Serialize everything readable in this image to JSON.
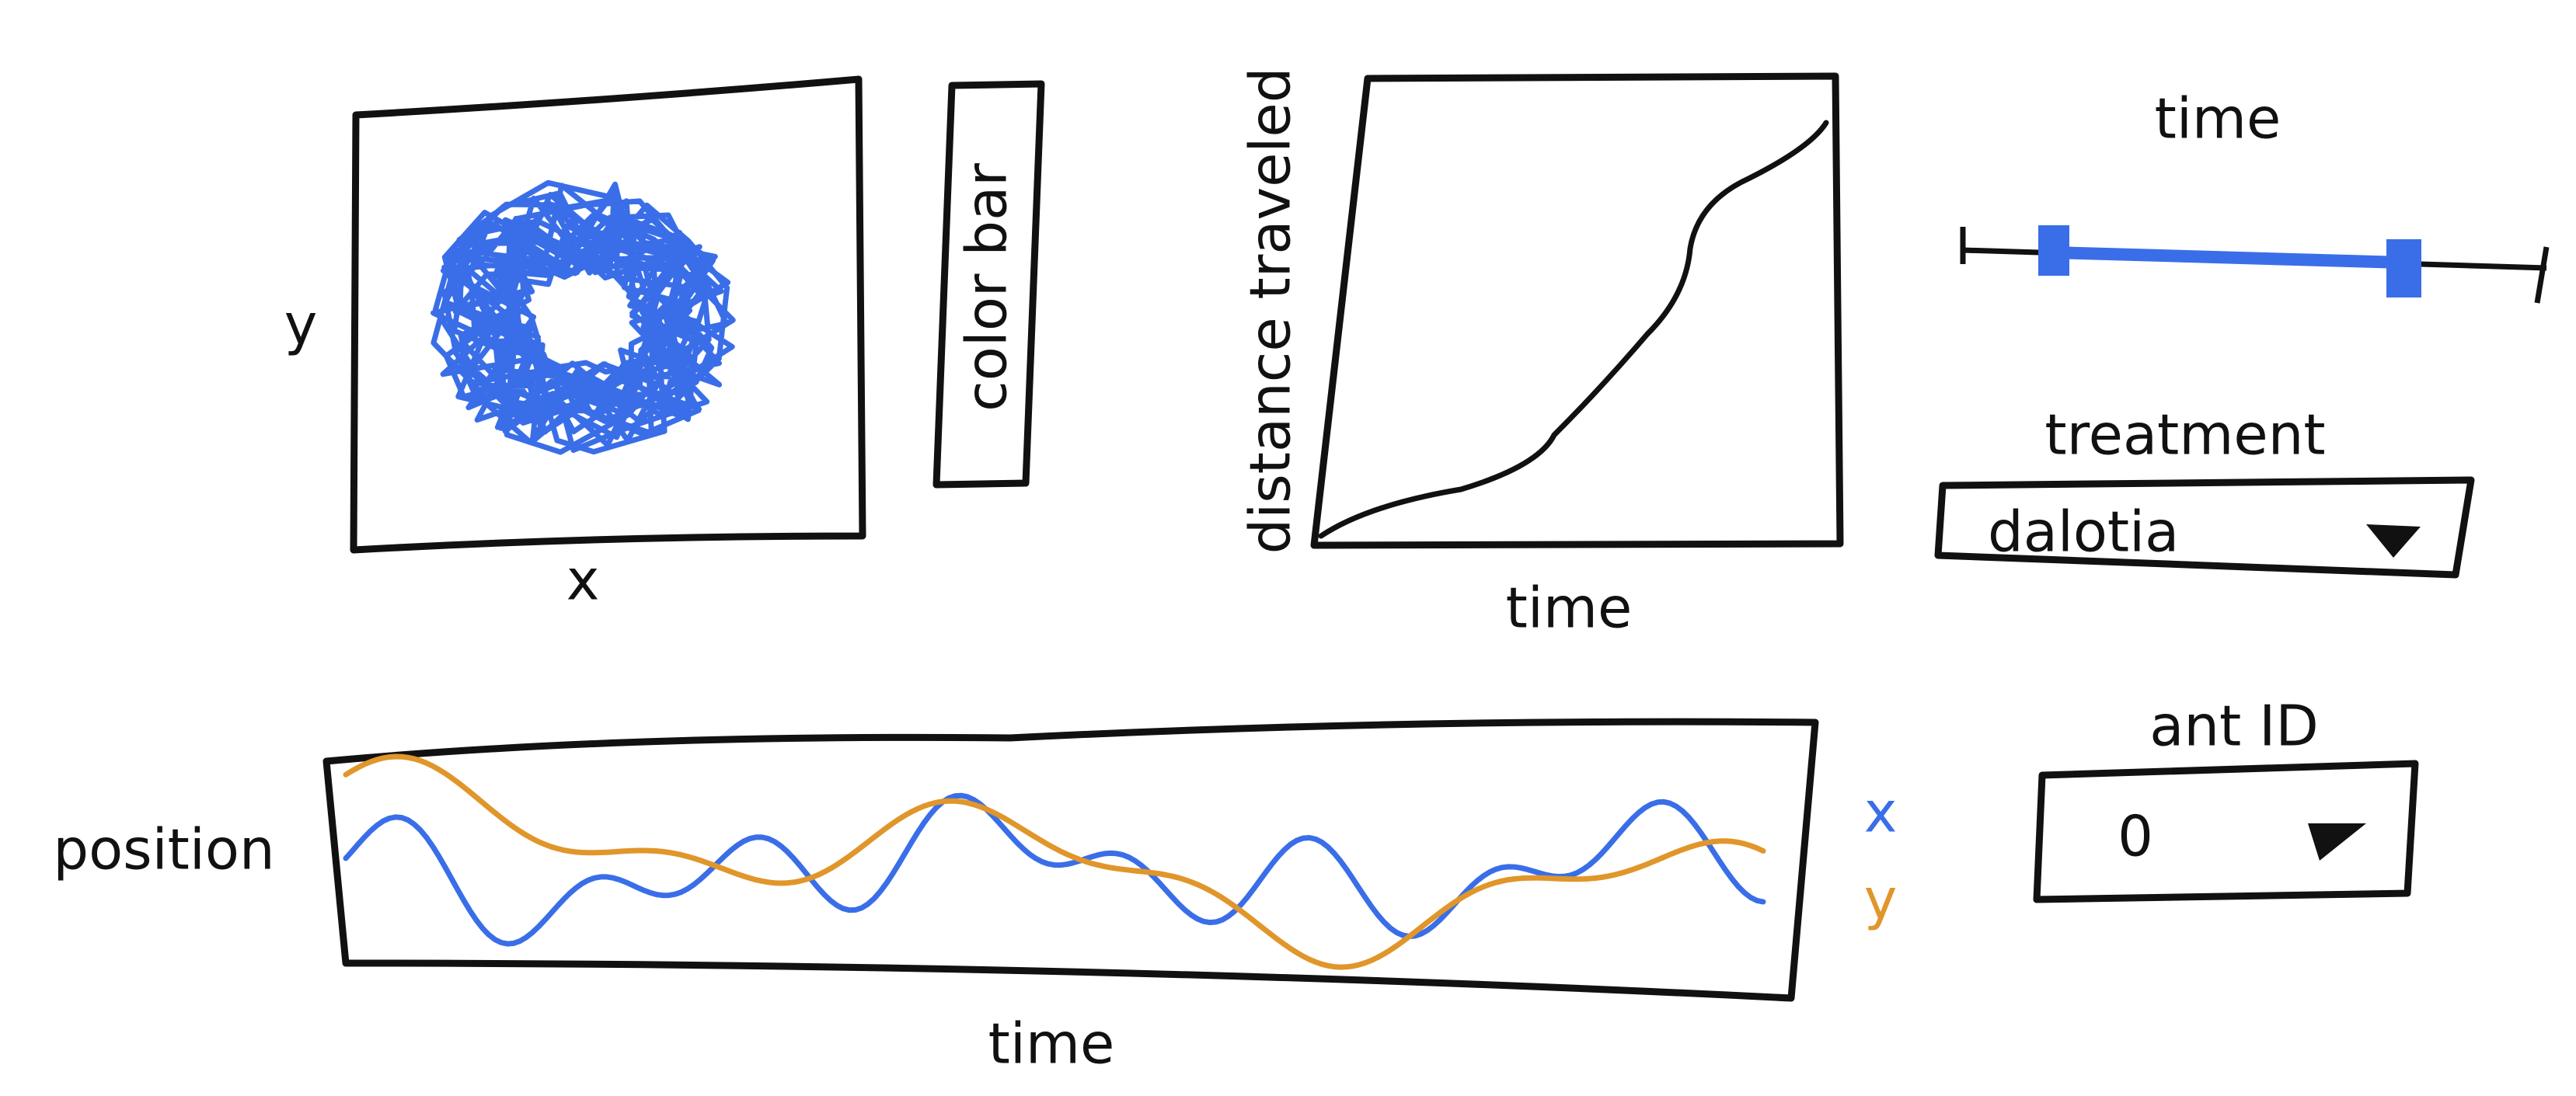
{
  "scatter_panel": {
    "y_label": "y",
    "x_label": "x"
  },
  "color_bar": {
    "label": "color bar"
  },
  "distance_panel": {
    "y_label": "distance traveled",
    "x_label": "time"
  },
  "time_slider": {
    "title": "time"
  },
  "treatment_dropdown": {
    "label": "treatment",
    "value": "dalotia"
  },
  "ant_id_dropdown": {
    "label": "ant ID",
    "value": "0"
  },
  "position_panel": {
    "y_label": "position",
    "x_label": "time",
    "legend": [
      "x",
      "y"
    ]
  }
}
